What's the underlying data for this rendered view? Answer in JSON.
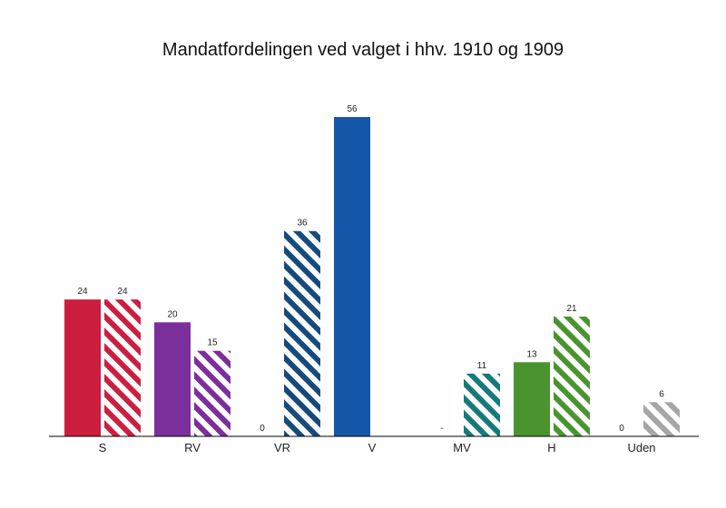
{
  "chart_data": {
    "type": "bar",
    "title": "Mandatfordelingen ved valget i hhv. 1910 og 1909",
    "xlabel": "",
    "ylabel": "",
    "ylim": [
      0,
      56
    ],
    "grid": false,
    "legend": "none",
    "categories": [
      "S",
      "RV",
      "VR",
      "V",
      "MV",
      "H",
      "Uden"
    ],
    "colors": [
      "#cc1e3f",
      "#7b2f9b",
      "#174a7c",
      "#1457a8",
      "#157a7a",
      "#4a9430",
      "#a6a6a6"
    ],
    "series": [
      {
        "values": [
          24,
          20,
          0,
          56,
          null,
          13,
          0
        ],
        "labels": [
          "24",
          "20",
          "0",
          "56",
          "-",
          "13",
          "0"
        ],
        "pattern": "solid"
      },
      {
        "values": [
          24,
          15,
          36,
          null,
          11,
          21,
          6
        ],
        "labels": [
          "24",
          "15",
          "36",
          "",
          "11",
          "21",
          "6"
        ],
        "pattern": "hatched"
      }
    ]
  }
}
